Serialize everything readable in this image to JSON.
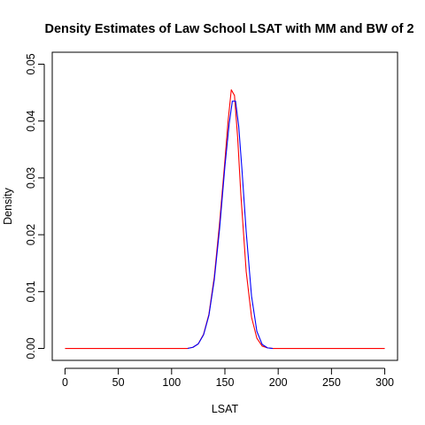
{
  "chart_data": {
    "type": "line",
    "title": "Density Estimates of Law School LSAT with MM and BW of 2",
    "xlabel": "LSAT",
    "ylabel": "Density",
    "xlim": [
      -12,
      312
    ],
    "ylim": [
      -0.0021,
      0.0521
    ],
    "x_ticks": [
      0,
      50,
      100,
      150,
      200,
      250,
      300
    ],
    "x_tick_labels": [
      "0",
      "50",
      "100",
      "150",
      "200",
      "250",
      "300"
    ],
    "y_ticks": [
      0.0,
      0.01,
      0.02,
      0.03,
      0.04,
      0.05
    ],
    "y_tick_labels": [
      "0.00",
      "0.01",
      "0.02",
      "0.03",
      "0.04",
      "0.05"
    ],
    "grid": false,
    "legend": "none",
    "series": [
      {
        "color": "#ff0000",
        "x": [
          0,
          100,
          110,
          115,
          120,
          125,
          130,
          135,
          140,
          145,
          150,
          153,
          156,
          159,
          162,
          165,
          170,
          175,
          180,
          185,
          190,
          195,
          200,
          250,
          300
        ],
        "y": [
          0.0,
          0.0,
          0.0,
          0.0,
          0.0002,
          0.0008,
          0.0025,
          0.006,
          0.0125,
          0.022,
          0.033,
          0.04,
          0.0455,
          0.0445,
          0.037,
          0.027,
          0.0135,
          0.0055,
          0.0018,
          0.0004,
          0.0001,
          0.0,
          0.0,
          0.0,
          0.0
        ]
      },
      {
        "color": "#0000ff",
        "x": [
          115,
          120,
          125,
          130,
          135,
          140,
          145,
          150,
          154,
          157,
          160,
          163,
          166,
          170,
          175,
          180,
          185,
          190,
          195
        ],
        "y": [
          0.0,
          0.0002,
          0.0008,
          0.0024,
          0.0058,
          0.012,
          0.021,
          0.032,
          0.0395,
          0.0435,
          0.0435,
          0.039,
          0.0315,
          0.0205,
          0.0092,
          0.003,
          0.0007,
          0.0001,
          0.0
        ]
      }
    ]
  },
  "colors": {
    "axis": "#000000",
    "series_1": "#ff0000",
    "series_2": "#0000ff"
  }
}
